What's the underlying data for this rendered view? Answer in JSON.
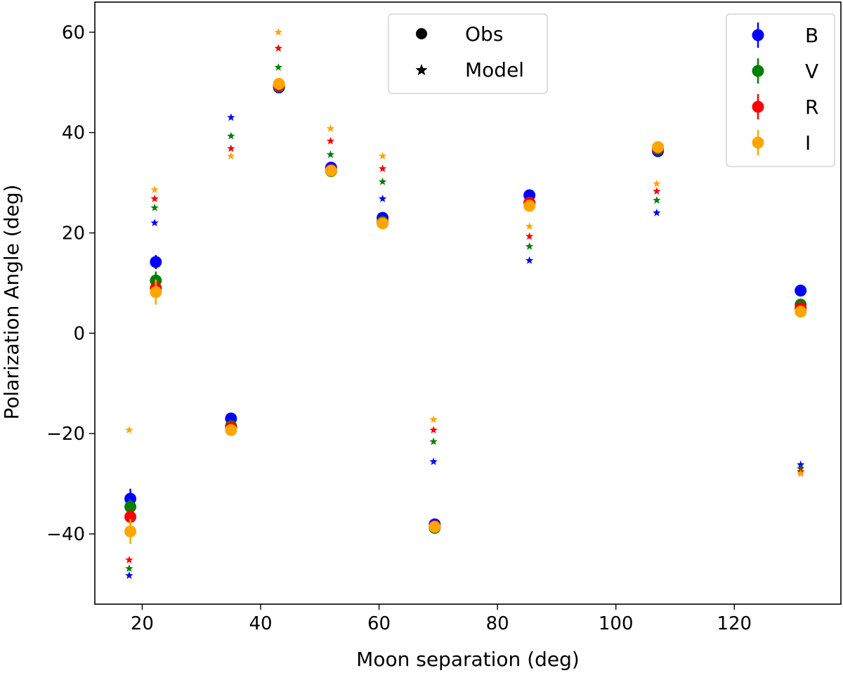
{
  "chart_data": {
    "type": "scatter",
    "title": "",
    "xlabel": "Moon separation (deg)",
    "ylabel": "Polarization Angle (deg)",
    "xlim": [
      12,
      138
    ],
    "ylim": [
      -54,
      66
    ],
    "xticks": [
      20,
      40,
      60,
      80,
      100,
      120
    ],
    "yticks": [
      -40,
      -20,
      0,
      20,
      40,
      60
    ],
    "grid": false,
    "series": [
      {
        "name": "B",
        "color": "#0000ff",
        "obs": [
          {
            "x": 18.0,
            "y": -33.0,
            "err": 2.0
          },
          {
            "x": 22.3,
            "y": 14.2,
            "err": 1.4
          },
          {
            "x": 35.0,
            "y": -17.0,
            "err": 0.6
          },
          {
            "x": 43.1,
            "y": 49.0,
            "err": 0.6
          },
          {
            "x": 51.9,
            "y": 33.0,
            "err": 0.6
          },
          {
            "x": 60.6,
            "y": 23.0,
            "err": 0.6
          },
          {
            "x": 69.4,
            "y": -38.1,
            "err": 0.6
          },
          {
            "x": 85.4,
            "y": 27.5,
            "err": 0.6
          },
          {
            "x": 107.1,
            "y": 36.3,
            "err": 0.6
          },
          {
            "x": 131.2,
            "y": 8.5,
            "err": 0.6
          }
        ],
        "model": [
          {
            "x": 17.8,
            "y": -48.3
          },
          {
            "x": 22.1,
            "y": 22.0
          },
          {
            "x": 35.0,
            "y": 43.0
          },
          {
            "x": 43.0,
            "y": 48.5
          },
          {
            "x": 51.8,
            "y": 32.5
          },
          {
            "x": 60.6,
            "y": 26.8
          },
          {
            "x": 69.2,
            "y": -25.6
          },
          {
            "x": 85.4,
            "y": 14.5
          },
          {
            "x": 106.9,
            "y": 24.0
          },
          {
            "x": 131.2,
            "y": -26.2
          }
        ]
      },
      {
        "name": "V",
        "color": "#008000",
        "obs": [
          {
            "x": 18.0,
            "y": -34.6,
            "err": 1.5
          },
          {
            "x": 22.3,
            "y": 10.5,
            "err": 1.8
          },
          {
            "x": 35.0,
            "y": -18.5,
            "err": 0.6
          },
          {
            "x": 43.1,
            "y": 49.2,
            "err": 0.6
          },
          {
            "x": 51.9,
            "y": 32.3,
            "err": 0.6
          },
          {
            "x": 60.6,
            "y": 22.2,
            "err": 0.6
          },
          {
            "x": 69.4,
            "y": -38.8,
            "err": 0.6
          },
          {
            "x": 85.4,
            "y": 26.0,
            "err": 0.6
          },
          {
            "x": 107.1,
            "y": 36.7,
            "err": 0.6
          },
          {
            "x": 131.2,
            "y": 5.7,
            "err": 0.6
          }
        ],
        "model": [
          {
            "x": 17.8,
            "y": -46.9
          },
          {
            "x": 22.1,
            "y": 25.0
          },
          {
            "x": 35.0,
            "y": 39.3
          },
          {
            "x": 43.0,
            "y": 53.0
          },
          {
            "x": 51.8,
            "y": 35.6
          },
          {
            "x": 60.6,
            "y": 30.2
          },
          {
            "x": 69.2,
            "y": -21.6
          },
          {
            "x": 85.4,
            "y": 17.3
          },
          {
            "x": 106.9,
            "y": 26.5
          },
          {
            "x": 131.2,
            "y": -27.0
          }
        ]
      },
      {
        "name": "R",
        "color": "#ff0000",
        "obs": [
          {
            "x": 18.0,
            "y": -36.6,
            "err": 1.5
          },
          {
            "x": 22.3,
            "y": 9.0,
            "err": 1.8
          },
          {
            "x": 35.0,
            "y": -18.8,
            "err": 0.6
          },
          {
            "x": 43.1,
            "y": 49.4,
            "err": 0.6
          },
          {
            "x": 51.9,
            "y": 32.5,
            "err": 0.6
          },
          {
            "x": 60.6,
            "y": 22.0,
            "err": 0.6
          },
          {
            "x": 69.4,
            "y": -38.5,
            "err": 0.6
          },
          {
            "x": 85.4,
            "y": 26.0,
            "err": 0.6
          },
          {
            "x": 107.1,
            "y": 36.9,
            "err": 0.6
          },
          {
            "x": 131.2,
            "y": 5.0,
            "err": 0.6
          }
        ],
        "model": [
          {
            "x": 17.8,
            "y": -45.2
          },
          {
            "x": 22.1,
            "y": 26.8
          },
          {
            "x": 35.0,
            "y": 36.8
          },
          {
            "x": 43.0,
            "y": 56.8
          },
          {
            "x": 51.8,
            "y": 38.3
          },
          {
            "x": 60.6,
            "y": 32.8
          },
          {
            "x": 69.2,
            "y": -19.3
          },
          {
            "x": 85.4,
            "y": 19.3
          },
          {
            "x": 106.9,
            "y": 28.3
          },
          {
            "x": 131.2,
            "y": -27.6
          }
        ]
      },
      {
        "name": "I",
        "color": "#ffa500",
        "obs": [
          {
            "x": 18.0,
            "y": -39.5,
            "err": 2.5
          },
          {
            "x": 22.3,
            "y": 8.2,
            "err": 2.5
          },
          {
            "x": 35.0,
            "y": -19.3,
            "err": 0.6
          },
          {
            "x": 43.1,
            "y": 49.7,
            "err": 0.6
          },
          {
            "x": 51.9,
            "y": 32.4,
            "err": 0.6
          },
          {
            "x": 60.6,
            "y": 21.9,
            "err": 0.6
          },
          {
            "x": 69.4,
            "y": -38.6,
            "err": 0.6
          },
          {
            "x": 85.4,
            "y": 25.4,
            "err": 0.6
          },
          {
            "x": 107.1,
            "y": 37.1,
            "err": 0.6
          },
          {
            "x": 131.2,
            "y": 4.3,
            "err": 0.6
          }
        ],
        "model": [
          {
            "x": 17.8,
            "y": -19.3
          },
          {
            "x": 22.1,
            "y": 28.6
          },
          {
            "x": 35.0,
            "y": 35.3
          },
          {
            "x": 43.0,
            "y": 60.0
          },
          {
            "x": 51.8,
            "y": 40.8
          },
          {
            "x": 60.6,
            "y": 35.3
          },
          {
            "x": 69.2,
            "y": -17.2
          },
          {
            "x": 85.4,
            "y": 21.3
          },
          {
            "x": 106.9,
            "y": 29.8
          },
          {
            "x": 131.2,
            "y": -28.0
          }
        ]
      }
    ],
    "legend_markers": {
      "placement": "upper-center",
      "entries": [
        {
          "label": "Obs",
          "marker": "circle"
        },
        {
          "label": "Model",
          "marker": "star"
        }
      ]
    },
    "legend_bands": {
      "placement": "upper-right",
      "entries": [
        "B",
        "V",
        "R",
        "I"
      ]
    }
  }
}
